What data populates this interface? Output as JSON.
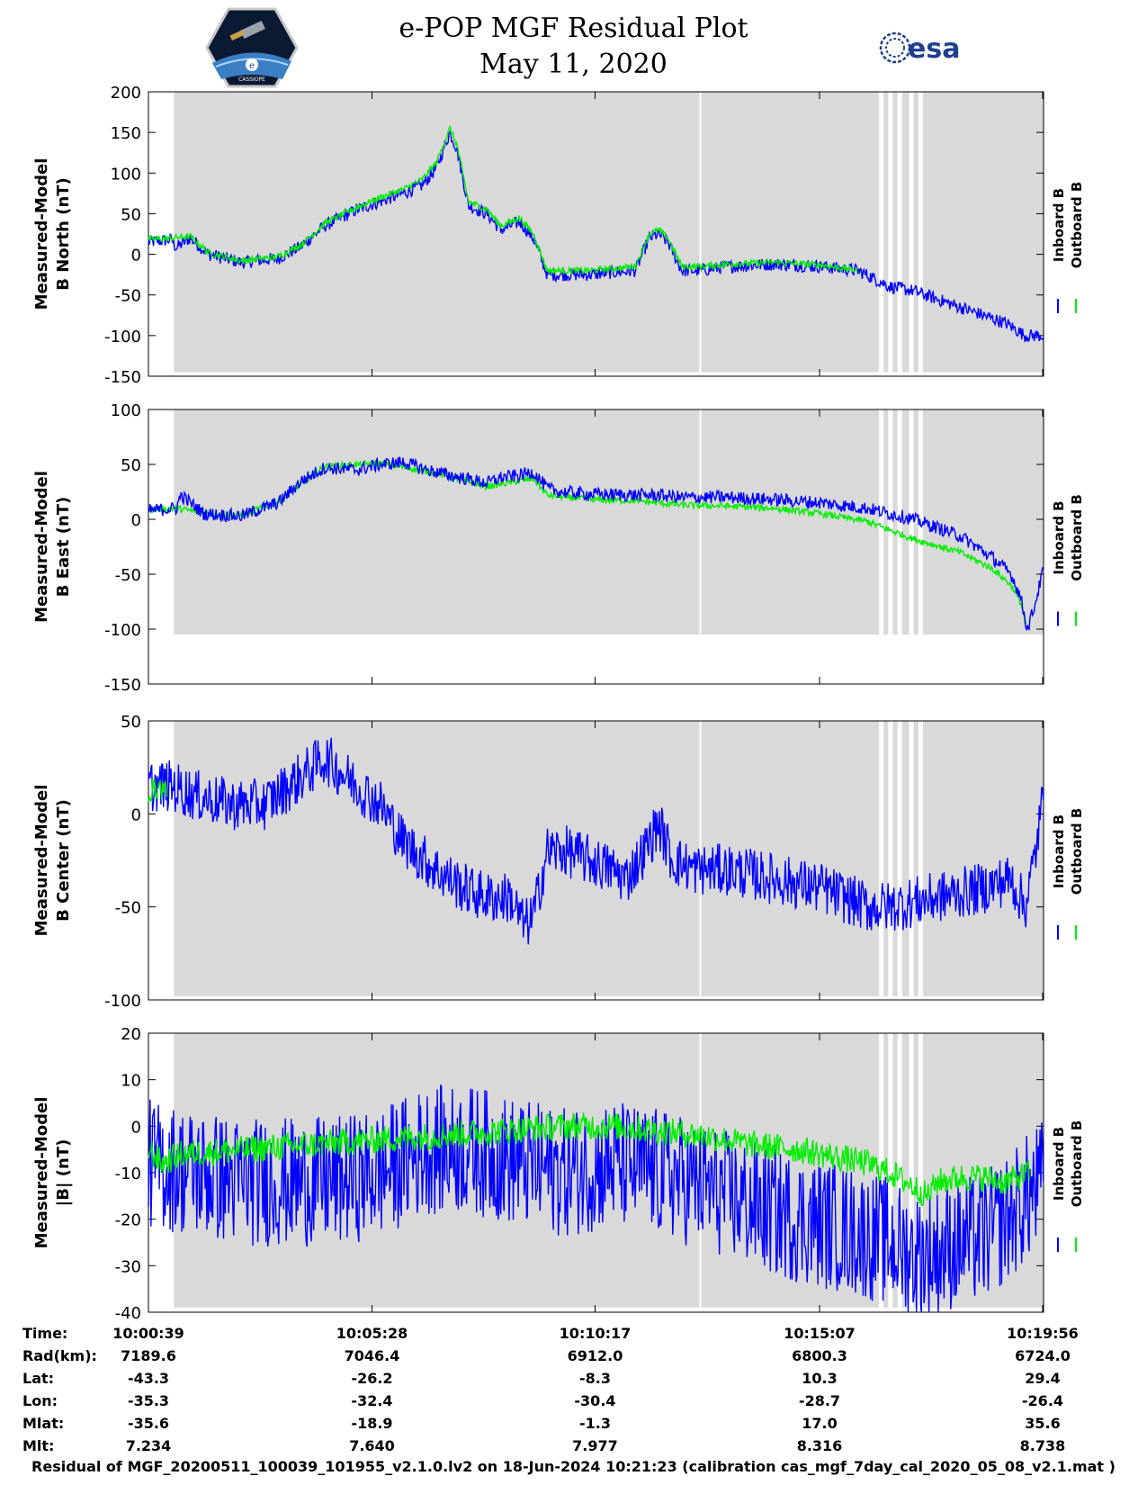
{
  "header": {
    "title": "e-POP MGF Residual Plot",
    "date": "May 11, 2020",
    "logo_left_text": "CASSIOPE",
    "logo_left_badge": "e",
    "logo_right_text": "esa"
  },
  "footer": "Residual of MGF_20200511_100039_101955_v2.1.0.lv2 on 18-Jun-2024 10:21:23 (calibration cas_mgf_7day_cal_2020_05_08_v2.1.mat )",
  "colors": {
    "inboard": "#0000ff",
    "outboard": "#00ee00",
    "shade": "#d9d9d9"
  },
  "ephemeris": {
    "rows": [
      {
        "label": "Time:",
        "values": [
          "10:00:39",
          "10:05:28",
          "10:10:17",
          "10:15:07",
          "10:19:56"
        ]
      },
      {
        "label": "Rad(km):",
        "values": [
          "7189.6",
          "7046.4",
          "6912.0",
          "6800.3",
          "6724.0"
        ]
      },
      {
        "label": "Lat:",
        "values": [
          "-43.3",
          "-26.2",
          "-8.3",
          "10.3",
          "29.4"
        ]
      },
      {
        "label": "Lon:",
        "values": [
          "-35.3",
          "-32.4",
          "-30.4",
          "-28.7",
          "-26.4"
        ]
      },
      {
        "label": "Mlat:",
        "values": [
          "-35.6",
          "-18.9",
          "-1.3",
          "17.0",
          "35.6"
        ]
      },
      {
        "label": "Mlt:",
        "values": [
          "7.234",
          "7.640",
          "7.977",
          "8.316",
          "8.738"
        ]
      }
    ]
  },
  "chart_data": [
    {
      "type": "line",
      "ylabel": [
        "Measured-Model",
        "B North (nT)"
      ],
      "ylim": [
        -150,
        200
      ],
      "yticks": [
        200,
        150,
        100,
        50,
        0,
        -50,
        -100,
        -150
      ],
      "x_range_min": [
        0,
        19.3
      ],
      "xtick_min": [
        0,
        4.82,
        9.63,
        14.47,
        19.28
      ],
      "shade_floor": -145,
      "legend": [
        "Inboard B",
        "Outboard B"
      ],
      "series": [
        {
          "name": "Inboard B",
          "jitter": 8,
          "x": [
            0,
            0.5,
            0.6,
            0.9,
            1.3,
            2.0,
            2.8,
            3.3,
            3.8,
            4.5,
            5.0,
            5.5,
            5.9,
            6.2,
            6.5,
            6.65,
            6.9,
            7.3,
            7.6,
            8.0,
            8.3,
            8.6,
            8.9,
            9.5,
            10.5,
            10.8,
            11.0,
            11.2,
            11.5,
            11.9,
            12.5,
            13.5,
            14.5,
            15.3,
            16.0,
            16.5,
            17.0,
            17.5,
            18.0,
            18.5,
            18.9,
            19.3
          ],
          "y": [
            15,
            18,
            8,
            20,
            0,
            -10,
            -5,
            10,
            35,
            55,
            65,
            75,
            85,
            105,
            150,
            130,
            60,
            50,
            30,
            40,
            20,
            -25,
            -25,
            -25,
            -20,
            20,
            25,
            15,
            -20,
            -20,
            -15,
            -12,
            -15,
            -20,
            -40,
            -45,
            -55,
            -65,
            -75,
            -85,
            -100,
            -100
          ]
        },
        {
          "name": "Outboard B",
          "jitter": 4,
          "x": [
            0,
            0.5,
            0.9,
            1.3,
            2.0,
            2.8,
            3.3,
            3.8,
            4.5,
            5.0,
            5.5,
            5.9,
            6.2,
            6.5,
            6.65,
            6.9,
            7.3,
            7.6,
            8.0,
            8.3,
            8.6,
            8.9,
            9.5,
            10.5,
            10.8,
            11.0,
            11.2,
            11.5,
            11.9,
            12.5,
            13.5,
            14.5,
            15.3
          ],
          "y": [
            18,
            20,
            22,
            2,
            -8,
            -3,
            12,
            38,
            58,
            70,
            80,
            92,
            112,
            155,
            135,
            65,
            55,
            35,
            45,
            25,
            -20,
            -20,
            -20,
            -15,
            25,
            30,
            20,
            -15,
            -15,
            -12,
            -10,
            -13,
            -20
          ]
        }
      ]
    },
    {
      "type": "line",
      "ylabel": [
        "Measured-Model",
        "B East (nT)"
      ],
      "ylim": [
        -150,
        100
      ],
      "yticks": [
        100,
        50,
        0,
        -50,
        -100,
        -150
      ],
      "x_range_min": [
        0,
        19.3
      ],
      "xtick_min": [
        0,
        4.82,
        9.63,
        14.47,
        19.28
      ],
      "shade_floor": -105,
      "legend": [
        "Inboard B",
        "Outboard B"
      ],
      "series": [
        {
          "name": "Inboard B",
          "jitter": 6,
          "x": [
            0,
            0.6,
            0.7,
            1.2,
            2.0,
            2.8,
            3.3,
            3.8,
            4.5,
            5.0,
            5.5,
            6.0,
            6.5,
            7.3,
            7.6,
            8.0,
            8.3,
            8.6,
            8.9,
            9.5,
            10.5,
            11.0,
            11.5,
            12.5,
            13.5,
            14.5,
            15.5,
            16.5,
            17.5,
            18.2,
            18.6,
            18.8,
            18.95,
            19.1,
            19.3
          ],
          "y": [
            8,
            10,
            22,
            5,
            3,
            15,
            35,
            47,
            45,
            50,
            52,
            45,
            40,
            33,
            38,
            40,
            43,
            28,
            25,
            23,
            22,
            22,
            20,
            20,
            18,
            15,
            10,
            0,
            -15,
            -35,
            -50,
            -70,
            -100,
            -80,
            -45
          ]
        },
        {
          "name": "Outboard B",
          "jitter": 3,
          "x": [
            0,
            0.6,
            1.2,
            2.0,
            2.8,
            3.8,
            5.0,
            6.0,
            7.3,
            8.3,
            8.6,
            9.5,
            10.5,
            11.5,
            12.5,
            13.5,
            14.5,
            15.5,
            16.5,
            17.5,
            18.2,
            18.6,
            18.8,
            18.95
          ],
          "y": [
            9,
            10,
            6,
            4,
            16,
            48,
            51,
            44,
            30,
            37,
            22,
            18,
            17,
            13,
            12,
            10,
            5,
            -2,
            -18,
            -30,
            -45,
            -60,
            -75,
            -100
          ]
        }
      ]
    },
    {
      "type": "line",
      "ylabel": [
        "Measured-Model",
        "B Center (nT)"
      ],
      "ylim": [
        -100,
        50
      ],
      "yticks": [
        50,
        0,
        -50,
        -100
      ],
      "x_range_min": [
        0,
        19.3
      ],
      "xtick_min": [
        0,
        4.82,
        9.63,
        14.47,
        19.28
      ],
      "shade_floor": -98,
      "legend": [
        "Inboard B",
        "Outboard B"
      ],
      "series": [
        {
          "name": "Inboard B",
          "jitter": 14,
          "x": [
            0,
            0.5,
            1.0,
            1.8,
            2.5,
            3.3,
            3.8,
            4.5,
            5.0,
            5.5,
            6.2,
            6.8,
            7.3,
            7.8,
            8.1,
            8.3,
            8.6,
            9.0,
            9.5,
            10.0,
            10.3,
            10.7,
            11.0,
            11.3,
            11.8,
            12.5,
            13.5,
            14.5,
            15.0,
            15.5,
            16.0,
            17.0,
            18.0,
            18.6,
            18.9,
            19.1,
            19.3
          ],
          "y": [
            15,
            15,
            10,
            5,
            5,
            20,
            30,
            15,
            5,
            -15,
            -30,
            -40,
            -45,
            -45,
            -60,
            -55,
            -20,
            -20,
            -25,
            -30,
            -35,
            -20,
            -5,
            -25,
            -30,
            -30,
            -35,
            -40,
            -45,
            -50,
            -50,
            -45,
            -40,
            -35,
            -50,
            -25,
            10
          ]
        },
        {
          "name": "Outboard B",
          "jitter": 6,
          "x": [
            0,
            0.2,
            0.4
          ],
          "y": [
            12,
            14,
            13
          ]
        }
      ]
    },
    {
      "type": "line",
      "ylabel": [
        "Measured-Model",
        "|B| (nT)"
      ],
      "ylim": [
        -40,
        20
      ],
      "yticks": [
        20,
        10,
        0,
        -10,
        -20,
        -30,
        -40
      ],
      "x_range_min": [
        0,
        19.3
      ],
      "xtick_min": [
        0,
        4.82,
        9.63,
        14.47,
        19.28
      ],
      "shade_floor": -39,
      "legend": [
        "Inboard B",
        "Outboard B"
      ],
      "series": [
        {
          "name": "Inboard B",
          "jitter": 14,
          "x": [
            0,
            1.0,
            2.0,
            3.0,
            4.0,
            5.0,
            6.0,
            7.0,
            8.0,
            9.0,
            10.0,
            11.0,
            12.0,
            13.0,
            14.0,
            15.0,
            16.0,
            16.5,
            17.0,
            17.5,
            18.0,
            18.5,
            19.0,
            19.3
          ],
          "y": [
            -8,
            -10,
            -12,
            -12,
            -12,
            -10,
            -5,
            -5,
            -8,
            -10,
            -8,
            -10,
            -13,
            -17,
            -20,
            -22,
            -25,
            -28,
            -27,
            -25,
            -24,
            -20,
            -15,
            -12
          ]
        },
        {
          "name": "Outboard B",
          "jitter": 3,
          "x": [
            0,
            0.3,
            0.7,
            9.0,
            10.0,
            11.0,
            12.0,
            13.0,
            14.0,
            15.0,
            15.5,
            16.0,
            16.5,
            16.8,
            17.0,
            17.5,
            18.0,
            18.5,
            19.0
          ],
          "y": [
            -5,
            -8,
            -6,
            0,
            0,
            -1,
            -2,
            -4,
            -5,
            -7,
            -8,
            -10,
            -13,
            -15,
            -12,
            -11,
            -11,
            -12,
            -10
          ]
        }
      ]
    }
  ]
}
